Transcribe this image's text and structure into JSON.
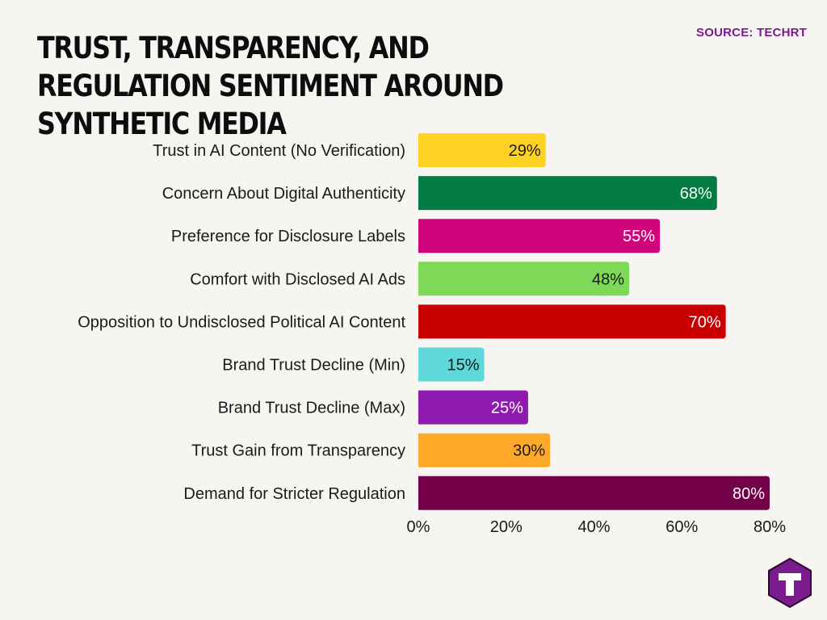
{
  "header": {
    "title": "TRUST, TRANSPARENCY, AND REGULATION SENTIMENT AROUND SYNTHETIC MEDIA",
    "source": "SOURCE: TECHRT"
  },
  "logo": {
    "icon": "techrt-logo-icon",
    "color": "#7a1b8e"
  },
  "chart_data": {
    "type": "bar",
    "orientation": "horizontal",
    "title": "TRUST, TRANSPARENCY, AND REGULATION SENTIMENT AROUND SYNTHETIC MEDIA",
    "xlabel": "",
    "ylabel": "",
    "xlim": [
      0,
      80
    ],
    "x_ticks": [
      "0%",
      "20%",
      "40%",
      "60%",
      "80%"
    ],
    "tick_values": [
      0,
      20,
      40,
      60,
      80
    ],
    "grid": false,
    "legend": "none",
    "categories": [
      "Trust in AI Content (No Verification)",
      "Concern About Digital Authenticity",
      "Preference for Disclosure Labels",
      "Comfort with Disclosed AI Ads",
      "Opposition to Undisclosed Political AI Content",
      "Brand Trust Decline (Min)",
      "Brand Trust Decline (Max)",
      "Trust Gain from Transparency",
      "Demand for Stricter Regulation"
    ],
    "values": [
      29,
      68,
      55,
      48,
      70,
      15,
      25,
      30,
      80
    ],
    "data_labels": [
      "29%",
      "68%",
      "55%",
      "48%",
      "70%",
      "15%",
      "25%",
      "30%",
      "80%"
    ],
    "colors": [
      "#fdd222",
      "#037c43",
      "#d2047c",
      "#7dd957",
      "#c90000",
      "#5ed8d8",
      "#8e1ab0",
      "#fea92a",
      "#730048"
    ],
    "label_colors": [
      "#1a1a1a",
      "#ffffff",
      "#ffffff",
      "#1a1a1a",
      "#ffffff",
      "#1a1a1a",
      "#ffffff",
      "#1a1a1a",
      "#ffffff"
    ]
  }
}
